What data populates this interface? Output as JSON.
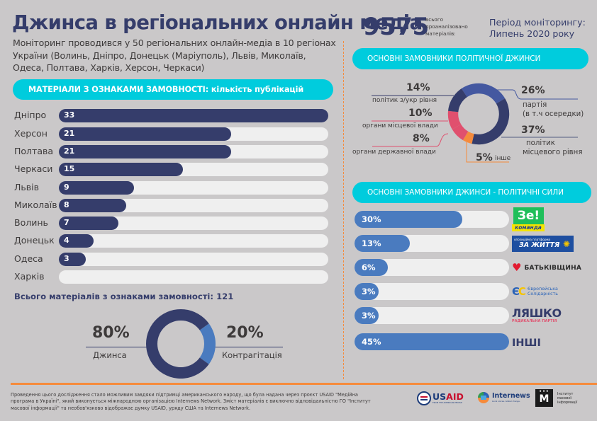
{
  "header": {
    "title": "Джинса в регіональних онлайн медіа",
    "subtitle": "Моніторинг проводився у 50 регіональних онлайн-медіа в 10 регіонах України (Волинь, Дніпро, Донецьк (Маріуполь), Львів, Миколаїв, Одеса, Полтава, Харків, Херсон, Черкаси)",
    "total_number": "9575",
    "total_caption": [
      "всього",
      "проаналізовано",
      "матеріалів:"
    ],
    "period_line1": "Період моніторингу:",
    "period_line2": "Липень 2020 року"
  },
  "colors": {
    "navy": "#353d6b",
    "blue": "#4a7bbf",
    "cyan": "#00ccdd",
    "orange": "#f58b3c",
    "pink": "#e0506e",
    "indigo": "#4458a0",
    "track": "#efefef",
    "background": "#cac8c9"
  },
  "regions_section": {
    "header": "МАТЕРІАЛИ З ОЗНАКАМИ ЗАМОВНОСТІ: кількість публікацій",
    "total_label": "Всього матеріалів з ознаками замовності: 121"
  },
  "split_donut": {
    "left_pct": "80%",
    "left_label": "Джинса",
    "right_pct": "20%",
    "right_label": "Контрагітація"
  },
  "political_section": {
    "header": "ОСНОВНІ ЗАМОВНИКИ ПОЛІТИЧНОЇ ДЖИНСИ",
    "labels": {
      "p14": "14%",
      "l14": "політик з/укр рівня",
      "p10": "10%",
      "l10": "органи місцевої влади",
      "p8": "8%",
      "l8": "органи державної влади",
      "p26": "26%",
      "l26a": "партія",
      "l26b": "(в т.ч осередки)",
      "p37": "37%",
      "l37a": "політик",
      "l37b": "місцевого рівня",
      "p5": "5%",
      "l5": "інше"
    }
  },
  "forces_section": {
    "header": "ОСНОВНІ ЗАМОВНИКИ ДЖИНСИ - ПОЛІТИЧНІ СИЛИ",
    "logos": {
      "ze_top": "Зе!",
      "ze_bottom": "команда",
      "opzzh_top": "опозиційна платформа",
      "opzzh_bottom": "ЗА ЖИТТЯ",
      "batk": "БАТЬКІВЩИНА",
      "es_mark": "ЄС",
      "es_line1": "Європейська",
      "es_line2": "Солідарність",
      "lyashko": "ЛЯШКО",
      "lyashko_sub": "РАДИКАЛЬНА ПАРТІЯ",
      "other": "ІНШІ"
    }
  },
  "footer": {
    "text": "Проведення цього дослідження стало можливим завдяки підтримці американського народу, що була надана через проєкт USAID \"Медійна програма в Україні\", який виконується міжнародною організацією Internews Network. Зміст матеріалів є виключно відповідальністю ГО \"Інститут масової інформації\" та необов'язково відображає думку USAID, уряду США та Internews Network.",
    "usaid": "USAID",
    "usaid_sub": "FROM THE AMERICAN PEOPLE",
    "internews": "Internews",
    "internews_sub": "Local voices. Global change.",
    "imi_mark": "М",
    "imi_text": [
      "Інститут",
      "масової",
      "інформації"
    ]
  },
  "chart_data": [
    {
      "type": "bar",
      "orientation": "horizontal",
      "title": "МАТЕРІАЛИ З ОЗНАКАМИ ЗАМОВНОСТІ: кількість публікацій",
      "categories": [
        "Дніпро",
        "Херсон",
        "Полтава",
        "Черкаси",
        "Львів",
        "Миколаїв",
        "Волинь",
        "Донецьк",
        "Одеса",
        "Харків"
      ],
      "values": [
        33,
        21,
        21,
        15,
        9,
        8,
        7,
        4,
        3,
        0
      ],
      "labels": [
        "33",
        "21",
        "21",
        "15",
        "9",
        "8",
        "7",
        "4",
        "3",
        ""
      ],
      "xlim": [
        0,
        33
      ]
    },
    {
      "type": "pie",
      "donut": true,
      "categories": [
        "Джинса",
        "Контрагітація"
      ],
      "values": [
        80,
        20
      ],
      "colors": [
        "#353d6b",
        "#4a7bbf"
      ]
    },
    {
      "type": "pie",
      "donut": true,
      "title": "ОСНОВНІ ЗАМОВНИКИ ПОЛІТИЧНОЇ ДЖИНСИ",
      "categories": [
        "партія (в т.ч осередки)",
        "політик місцевого рівня",
        "інше",
        "органи державної влади",
        "органи місцевої влади",
        "політик з/укр рівня"
      ],
      "values": [
        26,
        37,
        5,
        8,
        10,
        14
      ],
      "colors": [
        "#4458a0",
        "#353d6b",
        "#f58b3c",
        "#e0506e",
        "#e0506e",
        "#353d6b"
      ]
    },
    {
      "type": "bar",
      "orientation": "horizontal",
      "title": "ОСНОВНІ ЗАМОВНИКИ ДЖИНСИ - ПОЛІТИЧНІ СИЛИ",
      "categories": [
        "Зе! команда",
        "Опозиційна платформа — За життя",
        "Батьківщина",
        "Європейська Солідарність",
        "Радикальна партія Ляшка",
        "Інші"
      ],
      "values": [
        30,
        13,
        6,
        3,
        3,
        45
      ],
      "labels": [
        "30%",
        "13%",
        "6%",
        "3%",
        "3%",
        "45%"
      ],
      "xlim": [
        0,
        45
      ]
    }
  ]
}
